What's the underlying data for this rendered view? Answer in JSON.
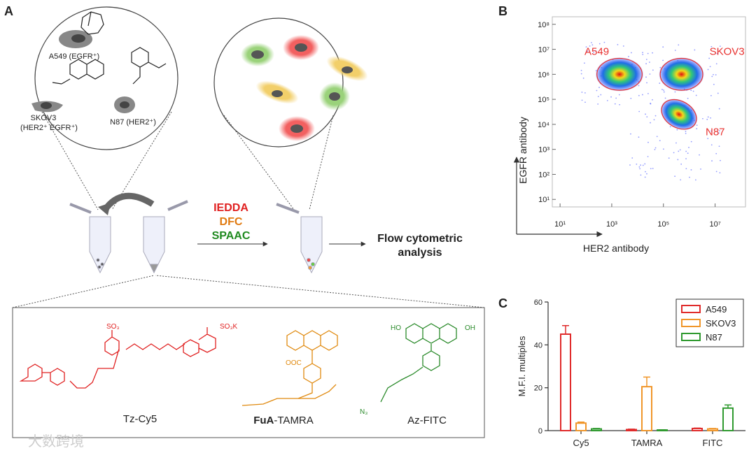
{
  "figure": {
    "panel_a": {
      "label": "A",
      "cells": [
        "A549 (EGFR⁺)",
        "SKOV3",
        "(HER2⁺ EGFR⁺)",
        "N87 (HER2⁺)"
      ],
      "reactions": [
        "IEDDA",
        "DFC",
        "SPAAC"
      ],
      "output": [
        "Flow cytometric",
        "analysis"
      ],
      "probes": {
        "tz": "Tz-Cy5",
        "fua_bold": "FuA",
        "fua_rest": "-TAMRA",
        "az": "Az-FITC"
      },
      "atoms": [
        "SO₃",
        "SO₃K",
        "OOC",
        "N₃",
        "HO",
        "OH"
      ]
    },
    "watermark": "大数跨境"
  },
  "chart_data": [
    {
      "type": "scatter",
      "panel": "B",
      "xlabel": "HER2 antibody",
      "ylabel": "EGFR antibody",
      "log_x": true,
      "log_y": true,
      "xlim": [
        5,
        150000000
      ],
      "ylim": [
        5,
        200000000
      ],
      "xticks": [
        {
          "value": 10,
          "label": "10¹"
        },
        {
          "value": 1000,
          "label": "10³"
        },
        {
          "value": 100000,
          "label": "10⁵"
        },
        {
          "value": 10000000,
          "label": "10⁷"
        }
      ],
      "yticks": [
        {
          "value": 10,
          "label": "10¹"
        },
        {
          "value": 100,
          "label": "10²"
        },
        {
          "value": 1000,
          "label": "10³"
        },
        {
          "value": 10000,
          "label": "10⁴"
        },
        {
          "value": 100000,
          "label": "10⁵"
        },
        {
          "value": 1000000,
          "label": "10⁶"
        },
        {
          "value": 10000000,
          "label": "10⁷"
        },
        {
          "value": 100000000,
          "label": "10⁸"
        }
      ],
      "series": [
        {
          "name": "A549",
          "color": "#e8312f",
          "x": [
            2000
          ],
          "values": [
            1000000
          ]
        },
        {
          "name": "SKOV3",
          "color": "#e8312f",
          "x": [
            500000
          ],
          "values": [
            1000000
          ]
        },
        {
          "name": "N87",
          "color": "#e8312f",
          "x": [
            400000
          ],
          "values": [
            25000
          ]
        }
      ]
    },
    {
      "type": "bar",
      "panel": "C",
      "ylabel": "M.F.I. multiples",
      "categories": [
        "Cy5",
        "TAMRA",
        "FITC"
      ],
      "ylim": [
        0,
        60
      ],
      "yticks": [
        0,
        20,
        40,
        60
      ],
      "legend": "top-right",
      "series": [
        {
          "name": "A549",
          "color": "#e02b2b",
          "values": [
            45,
            0.5,
            1
          ],
          "errors": [
            4,
            0.2,
            0.2
          ]
        },
        {
          "name": "SKOV3",
          "color": "#f0962a",
          "values": [
            3.5,
            20.5,
            0.8
          ],
          "errors": [
            0.5,
            4.5,
            0.2
          ]
        },
        {
          "name": "N87",
          "color": "#2f9a2f",
          "values": [
            0.8,
            0.3,
            10.5
          ],
          "errors": [
            0.2,
            0.1,
            1.5
          ]
        }
      ]
    }
  ]
}
